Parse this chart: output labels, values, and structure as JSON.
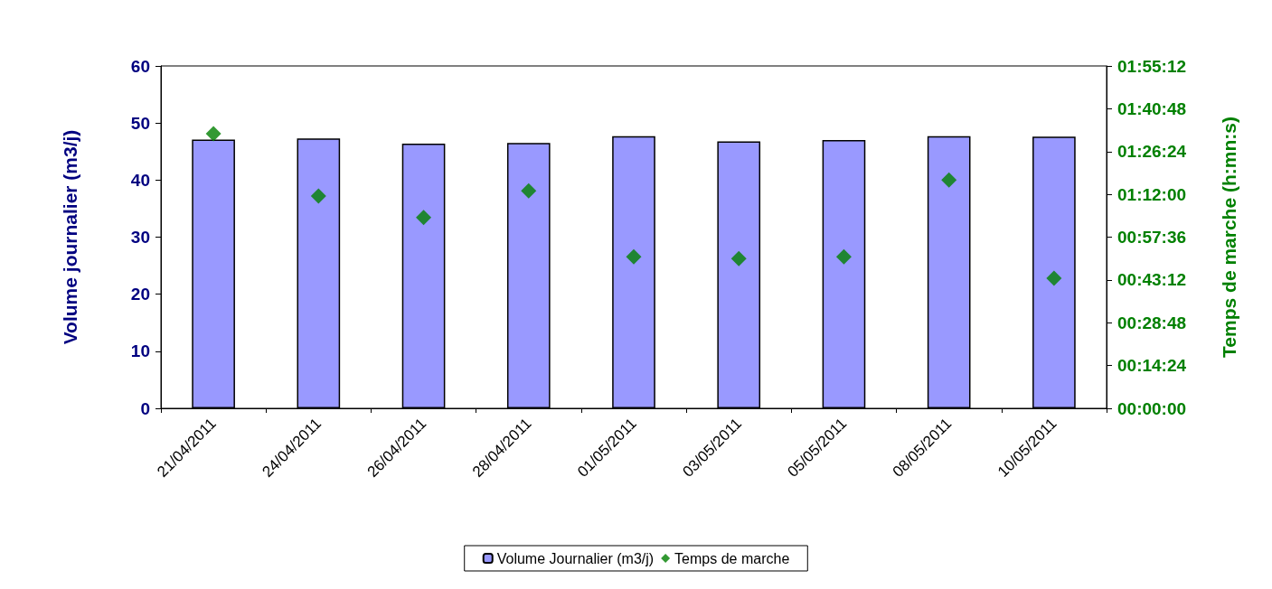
{
  "chart_data": {
    "type": "bar",
    "categories": [
      "21/04/2011",
      "24/04/2011",
      "26/04/2011",
      "28/04/2011",
      "01/05/2011",
      "03/05/2011",
      "05/05/2011",
      "08/05/2011",
      "10/05/2011"
    ],
    "series": [
      {
        "name": "Volume Journalier (m3/j)",
        "color": "#9999ff",
        "values": [
          47.1,
          47.3,
          46.4,
          46.5,
          47.7,
          46.8,
          47.0,
          47.7,
          47.6
        ]
      },
      {
        "name": "Temps de marche",
        "type": "scatter",
        "axis": "y2",
        "color": "#008000",
        "marker": "diamond",
        "values": [
          1.54,
          1.19,
          1.07,
          1.22,
          0.85,
          0.84,
          0.85,
          1.28,
          0.73
        ]
      }
    ],
    "ylabel": "Volume journalier (m3/j)",
    "y2label": "Temps de marche (h:mn:s)",
    "ylim": [
      0,
      60
    ],
    "yticks": [
      0,
      10,
      20,
      30,
      40,
      50,
      60
    ],
    "y2lim": [
      0,
      1.92
    ],
    "y2ticks": [
      {
        "value": 0,
        "label": "00:00:00"
      },
      {
        "value": 0.24,
        "label": "00:14:24"
      },
      {
        "value": 0.48,
        "label": "00:28:48"
      },
      {
        "value": 0.72,
        "label": "00:43:12"
      },
      {
        "value": 0.96,
        "label": "00:57:36"
      },
      {
        "value": 1.2,
        "label": "01:12:00"
      },
      {
        "value": 1.44,
        "label": "01:26:24"
      },
      {
        "value": 1.68,
        "label": "01:40:48"
      },
      {
        "value": 1.92,
        "label": "01:55:12"
      }
    ],
    "grid": false,
    "legend": "bottom"
  }
}
